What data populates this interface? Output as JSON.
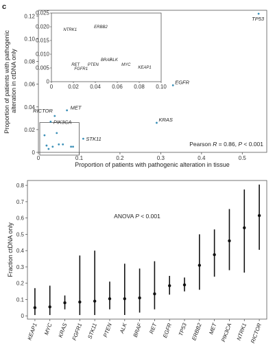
{
  "panel_label": "c",
  "chart_data": [
    {
      "type": "scatter",
      "title": "",
      "xlabel": "Proportion of patients with pathogenic alteration in tissue",
      "ylabel": "Proportion of patients with pathogenic alteration in ctDNA only",
      "xlim": [
        0,
        0.56
      ],
      "ylim": [
        0,
        0.125
      ],
      "xticks": [
        0,
        0.1,
        0.2,
        0.3,
        0.4,
        0.5
      ],
      "yticks": [
        0,
        0.02,
        0.04,
        0.06,
        0.08,
        0.1,
        0.12
      ],
      "xtick_labels": [
        "0",
        "0.1",
        "0.2",
        "0.3",
        "0.4",
        "0.5"
      ],
      "ytick_labels": [
        "0",
        "0.02",
        "0.04",
        "0.06",
        "0.08",
        "0.10",
        "0.12"
      ],
      "annotation": {
        "prefix": "Pearson ",
        "r_symbol": "R",
        "r_value": " = 0.86, ",
        "p_symbol": "P",
        "p_value": " < 0.001"
      },
      "points": [
        {
          "label": "TP53",
          "x": 0.54,
          "y": 0.122,
          "color": "#3a8fb7"
        },
        {
          "label": "EGFR",
          "x": 0.33,
          "y": 0.059,
          "color": "#3a8fb7"
        },
        {
          "label": "KRAS",
          "x": 0.29,
          "y": 0.026,
          "color": "#3a8fb7"
        },
        {
          "label": "MET",
          "x": 0.07,
          "y": 0.037,
          "color": "#3a8fb7"
        },
        {
          "label": "RICTOR",
          "x": 0.04,
          "y": 0.032,
          "color": "#3a8fb7"
        },
        {
          "label": "PIK3CA",
          "x": 0.03,
          "y": 0.027,
          "color": "#3a8fb7"
        },
        {
          "label": "STK11",
          "x": 0.11,
          "y": 0.012,
          "color": "#3a8fb7"
        },
        {
          "label": "",
          "x": 0.015,
          "y": 0.015,
          "color": "#3a8fb7"
        },
        {
          "label": "",
          "x": 0.045,
          "y": 0.017,
          "color": "#3a8fb7"
        },
        {
          "label": "",
          "x": 0.02,
          "y": 0.006,
          "color": "#3a8fb7"
        },
        {
          "label": "",
          "x": 0.035,
          "y": 0.005,
          "color": "#3a8fb7"
        },
        {
          "label": "",
          "x": 0.05,
          "y": 0.007,
          "color": "#3a8fb7"
        },
        {
          "label": "",
          "x": 0.06,
          "y": 0.007,
          "color": "#3a8fb7"
        },
        {
          "label": "",
          "x": 0.025,
          "y": 0.003,
          "color": "#3a8fb7"
        },
        {
          "label": "",
          "x": 0.08,
          "y": 0.005,
          "color": "#3a8fb7"
        },
        {
          "label": "",
          "x": 0.085,
          "y": 0.005,
          "color": "#3a8fb7"
        }
      ],
      "inset": {
        "xlim": [
          0,
          0.1
        ],
        "ylim": [
          0,
          0.025
        ],
        "xticks": [
          0,
          0.02,
          0.04,
          0.06,
          0.08,
          0.1
        ],
        "yticks": [
          0,
          0.005,
          0.01,
          0.015,
          0.02,
          0.025
        ],
        "xtick_labels": [
          "0",
          "0.02",
          "0.04",
          "0.06",
          "0.08",
          "0.10"
        ],
        "ytick_labels": [
          "0",
          "0.005",
          "0.010",
          "0.015",
          "0.020",
          "0.025"
        ],
        "points": [
          {
            "label": "NTRK1",
            "x": 0.017,
            "y": 0.0185
          },
          {
            "label": "ERBB2",
            "x": 0.045,
            "y": 0.0195
          },
          {
            "label": "BRAF",
            "x": 0.05,
            "y": 0.0075
          },
          {
            "label": "ALK",
            "x": 0.057,
            "y": 0.0075
          },
          {
            "label": "PTEN",
            "x": 0.038,
            "y": 0.0058
          },
          {
            "label": "RET",
            "x": 0.022,
            "y": 0.0058
          },
          {
            "label": "FGFR1",
            "x": 0.027,
            "y": 0.0042
          },
          {
            "label": "MYC",
            "x": 0.068,
            "y": 0.0058
          },
          {
            "label": "KEAP1",
            "x": 0.085,
            "y": 0.0048
          }
        ]
      }
    },
    {
      "type": "errorbar",
      "title": "",
      "xlabel": "",
      "ylabel": "Fraction ctDNA only",
      "ylim": [
        -0.02,
        0.83
      ],
      "yticks": [
        0,
        0.1,
        0.2,
        0.3,
        0.4,
        0.5,
        0.6,
        0.7,
        0.8
      ],
      "ytick_labels": [
        "0",
        "0.1",
        "0.2",
        "0.3",
        "0.4",
        "0.5",
        "0.6",
        "0.7",
        "0.8"
      ],
      "annotation": {
        "prefix": "ANOVA ",
        "p_symbol": "P",
        "p_value": " < 0.001"
      },
      "categories": [
        "KEAP1",
        "MYC",
        "KRAS",
        "FGFR1",
        "STK11",
        "PTEN",
        "ALK",
        "BRAF",
        "RET",
        "EGFR",
        "TP53",
        "ERBB2",
        "MET",
        "PIK3CA",
        "NTRK1",
        "RICTOR"
      ],
      "values": [
        0.05,
        0.055,
        0.08,
        0.085,
        0.09,
        0.105,
        0.105,
        0.11,
        0.135,
        0.185,
        0.19,
        0.31,
        0.375,
        0.46,
        0.54,
        0.615
      ],
      "lower": [
        0.005,
        0.005,
        0.04,
        0.005,
        0.005,
        0.04,
        0.005,
        0.02,
        0.04,
        0.13,
        0.15,
        0.16,
        0.24,
        0.28,
        0.265,
        0.405
      ],
      "upper": [
        0.17,
        0.185,
        0.125,
        0.37,
        0.4,
        0.21,
        0.32,
        0.29,
        0.335,
        0.245,
        0.235,
        0.5,
        0.53,
        0.655,
        0.775,
        0.805
      ]
    }
  ]
}
